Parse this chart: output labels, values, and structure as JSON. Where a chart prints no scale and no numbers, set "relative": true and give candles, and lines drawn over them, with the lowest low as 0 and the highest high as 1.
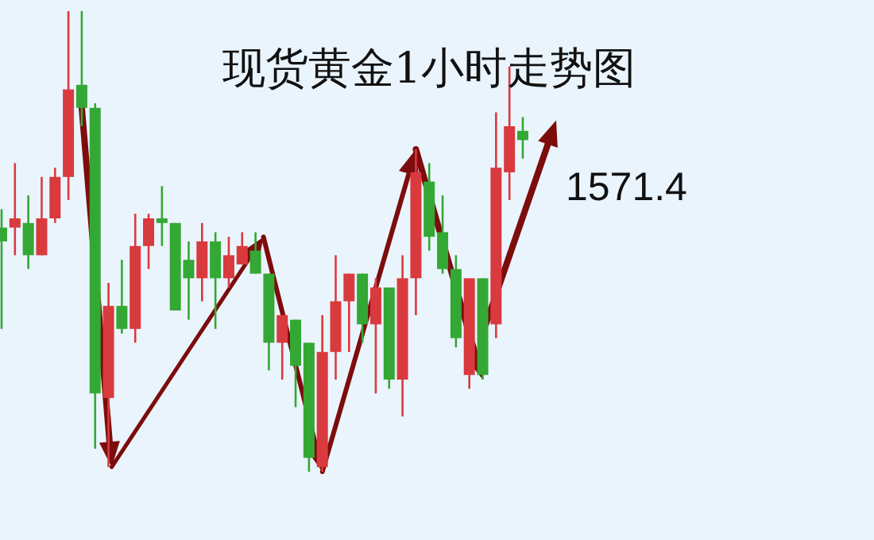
{
  "chart_data": {
    "type": "candlestick",
    "title": "现货黄金1小时走势图",
    "relative": true,
    "categories": [
      null,
      null,
      null,
      null,
      null,
      null,
      null,
      null,
      null,
      null,
      null,
      null,
      null,
      null,
      null,
      null,
      null,
      null,
      null,
      null,
      null,
      null,
      null,
      null,
      null,
      null,
      null,
      null,
      null,
      null,
      null,
      null,
      null,
      null,
      null,
      null,
      null,
      null,
      null,
      null
    ],
    "ohlc": [
      [
        0.53,
        0.57,
        0.31,
        0.5
      ],
      [
        0.53,
        0.67,
        0.47,
        0.55
      ],
      [
        0.54,
        0.6,
        0.44,
        0.47
      ],
      [
        0.47,
        0.64,
        0.47,
        0.55
      ],
      [
        0.55,
        0.66,
        0.54,
        0.64
      ],
      [
        0.64,
        1.0,
        0.59,
        0.83
      ],
      [
        0.84,
        1.0,
        0.75,
        0.79
      ],
      [
        0.79,
        0.8,
        0.05,
        0.17
      ],
      [
        0.16,
        0.41,
        0.01,
        0.36
      ],
      [
        0.36,
        0.46,
        0.3,
        0.31
      ],
      [
        0.31,
        0.56,
        0.28,
        0.49
      ],
      [
        0.49,
        0.56,
        0.44,
        0.55
      ],
      [
        0.55,
        0.62,
        0.49,
        0.54
      ],
      [
        0.54,
        0.54,
        0.35,
        0.35
      ],
      [
        0.46,
        0.5,
        0.33,
        0.42
      ],
      [
        0.42,
        0.54,
        0.37,
        0.5
      ],
      [
        0.5,
        0.52,
        0.31,
        0.42
      ],
      [
        0.42,
        0.51,
        0.4,
        0.47
      ],
      [
        0.45,
        0.52,
        0.45,
        0.49
      ],
      [
        0.48,
        0.52,
        0.43,
        0.43
      ],
      [
        0.43,
        0.43,
        0.22,
        0.28
      ],
      [
        0.28,
        0.34,
        0.2,
        0.34
      ],
      [
        0.33,
        0.33,
        0.14,
        0.23
      ],
      [
        0.28,
        0.28,
        0.0,
        0.03
      ],
      [
        0.01,
        0.34,
        0.0,
        0.26
      ],
      [
        0.26,
        0.47,
        0.2,
        0.37
      ],
      [
        0.37,
        0.43,
        0.26,
        0.43
      ],
      [
        0.43,
        0.43,
        0.28,
        0.32
      ],
      [
        0.32,
        0.42,
        0.17,
        0.4
      ],
      [
        0.4,
        0.4,
        0.18,
        0.2
      ],
      [
        0.2,
        0.47,
        0.12,
        0.42
      ],
      [
        0.42,
        0.7,
        0.34,
        0.65
      ],
      [
        0.63,
        0.67,
        0.48,
        0.51
      ],
      [
        0.52,
        0.6,
        0.43,
        0.44
      ],
      [
        0.44,
        0.47,
        0.27,
        0.29
      ],
      [
        0.21,
        0.42,
        0.18,
        0.42
      ],
      [
        0.42,
        0.42,
        0.2,
        0.21
      ],
      [
        0.32,
        0.78,
        0.29,
        0.66
      ],
      [
        0.65,
        0.88,
        0.59,
        0.75
      ],
      [
        0.74,
        0.77,
        0.68,
        0.72
      ]
    ],
    "annotations": [
      "1571.4"
    ]
  }
}
